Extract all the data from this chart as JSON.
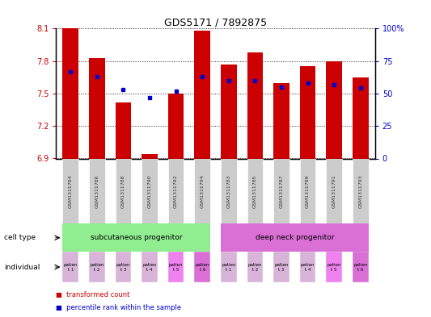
{
  "title": "GDS5171 / 7892875",
  "samples": [
    "GSM1311784",
    "GSM1311786",
    "GSM1311788",
    "GSM1311790",
    "GSM1311792",
    "GSM1311794",
    "GSM1311783",
    "GSM1311785",
    "GSM1311787",
    "GSM1311789",
    "GSM1311791",
    "GSM1311793"
  ],
  "transformed_count": [
    8.1,
    7.83,
    7.42,
    6.94,
    7.5,
    8.08,
    7.77,
    7.88,
    7.6,
    7.75,
    7.8,
    7.65
  ],
  "percentile_rank": [
    67,
    63,
    53,
    47,
    52,
    63,
    60,
    60,
    55,
    58,
    57,
    54
  ],
  "y_min": 6.9,
  "y_max": 8.1,
  "y_ticks": [
    6.9,
    7.2,
    7.5,
    7.8,
    8.1
  ],
  "right_y_ticks": [
    0,
    25,
    50,
    75,
    100
  ],
  "bar_color": "#cc0000",
  "dot_color": "#0000cc",
  "group1_label": "subcutaneous progenitor",
  "group2_label": "deep neck progenitor",
  "group1_color": "#90ee90",
  "group2_color": "#da70d6",
  "individual_labels": [
    "patien\nt 1",
    "patien\nt 2",
    "patien\nt 3",
    "patien\nt 4",
    "patien\nt 5",
    "patien\nt 6",
    "patien\nt 1",
    "patien\nt 2",
    "patien\nt 3",
    "patien\nt 4",
    "patien\nt 5",
    "patien\nt 6"
  ],
  "individual_bg_colors": [
    "#d8b4d8",
    "#d8b4d8",
    "#d8b4d8",
    "#d8b4d8",
    "#ee82ee",
    "#da70d6",
    "#d8b4d8",
    "#d8b4d8",
    "#d8b4d8",
    "#d8b4d8",
    "#ee82ee",
    "#da70d6"
  ],
  "sample_box_color": "#cccccc",
  "cell_type_label": "cell type",
  "individual_label": "individual",
  "tick_color_left": "#cc0000",
  "tick_color_right": "#0000cc"
}
